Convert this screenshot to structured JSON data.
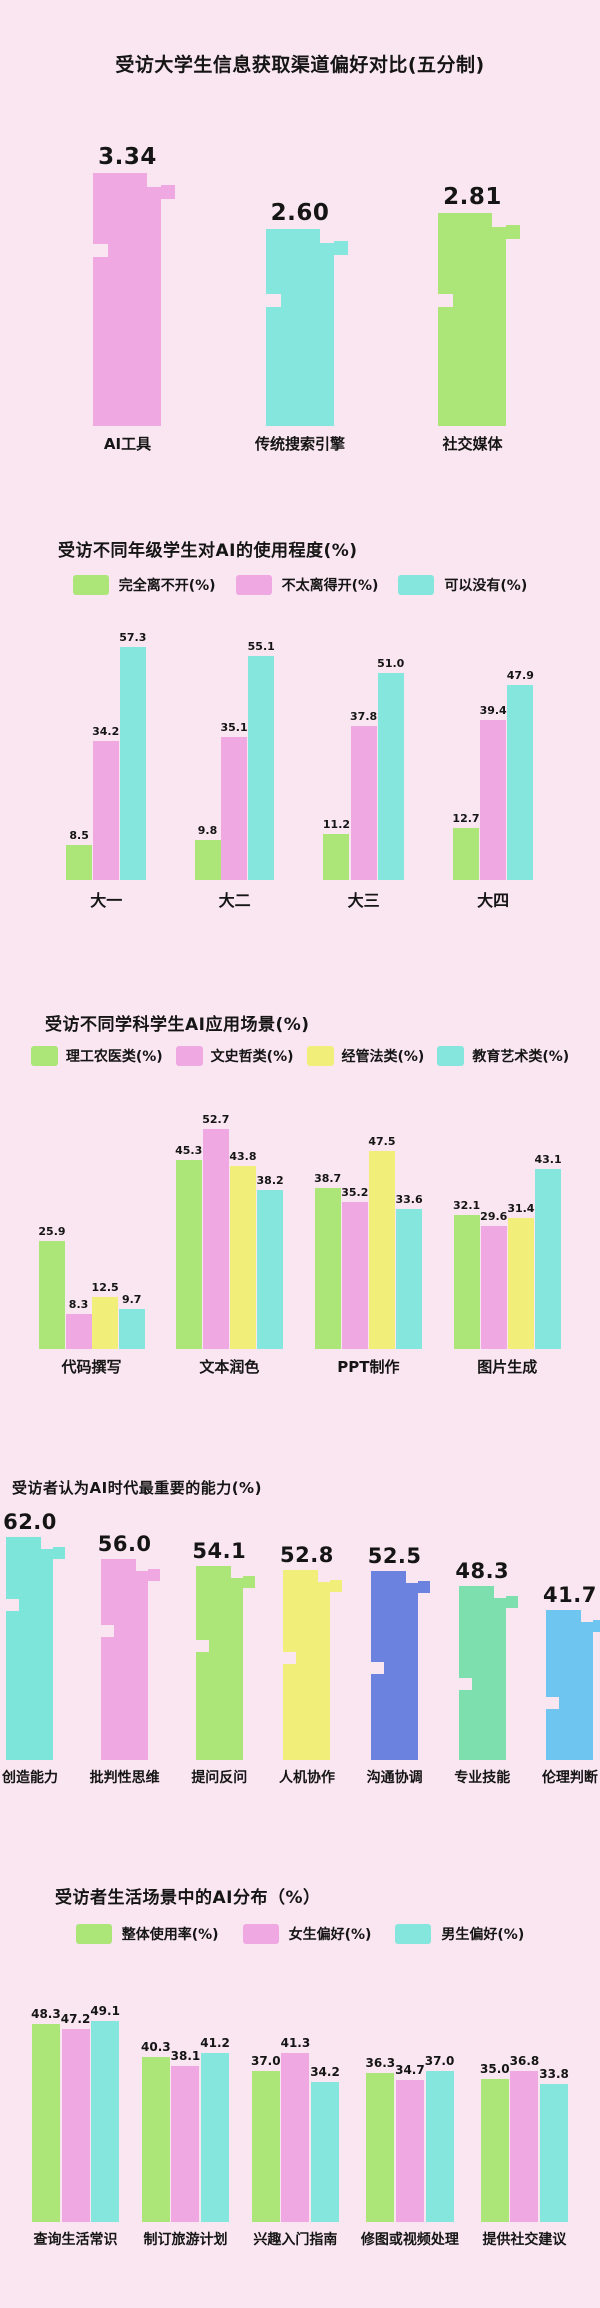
{
  "page": {
    "background": "#fae6f0",
    "text_color": "#151515"
  },
  "chart_data": [
    {
      "id": "channel-preference",
      "type": "bar",
      "title": "受访大学生信息获取渠道偏好对比(五分制)",
      "categories": [
        "AI工具",
        "传统搜索引擎",
        "社交媒体"
      ],
      "values": [
        3.34,
        2.6,
        2.81
      ],
      "decimals": 2,
      "bar_colors": [
        "#f0a8e2",
        "#84e6dc",
        "#ace578"
      ],
      "ylim": [
        0,
        3.5
      ],
      "grid": false,
      "legend_position": "none",
      "pixel_style": true
    },
    {
      "id": "grade-usage",
      "type": "bar",
      "title": "受访不同年级学生对AI的使用程度(%)",
      "categories": [
        "大一",
        "大二",
        "大三",
        "大四"
      ],
      "series": [
        {
          "name": "完全离不开(%)",
          "color": "#ace578",
          "values": [
            8.5,
            9.8,
            11.2,
            12.7
          ]
        },
        {
          "name": "不太离得开(%)",
          "color": "#f0a8e2",
          "values": [
            34.2,
            35.1,
            37.8,
            39.4
          ]
        },
        {
          "name": "可以没有(%)",
          "color": "#84e6dc",
          "values": [
            57.3,
            55.1,
            51.0,
            47.9
          ]
        }
      ],
      "decimals": 1,
      "ylim": [
        0,
        59
      ],
      "grid": false,
      "legend_position": "top",
      "pixel_style": false
    },
    {
      "id": "discipline-scenarios",
      "type": "bar",
      "title": "受访不同学科学生AI应用场景(%)",
      "categories": [
        "代码撰写",
        "文本润色",
        "PPT制作",
        "图片生成"
      ],
      "series": [
        {
          "name": "理工农医类(%)",
          "color": "#ace578",
          "values": [
            25.9,
            45.3,
            38.7,
            32.1
          ]
        },
        {
          "name": "文史哲类(%)",
          "color": "#f0a8e2",
          "values": [
            8.3,
            52.7,
            35.2,
            29.6
          ]
        },
        {
          "name": "经管法类(%)",
          "color": "#f1ee79",
          "values": [
            12.5,
            43.8,
            47.5,
            31.4
          ]
        },
        {
          "name": "教育艺术类(%)",
          "color": "#84e6dc",
          "values": [
            9.7,
            38.2,
            33.6,
            43.1
          ]
        }
      ],
      "decimals": 1,
      "ylim": [
        0,
        54
      ],
      "grid": false,
      "legend_position": "top",
      "pixel_style": false
    },
    {
      "id": "important-abilities",
      "type": "bar",
      "title": "受访者认为AI时代最重要的能力(%)",
      "categories": [
        "创造能力",
        "批判性思维",
        "提问反问",
        "人机协作",
        "沟通协调",
        "专业技能",
        "伦理判断"
      ],
      "values": [
        62.0,
        56.0,
        54.1,
        52.8,
        52.5,
        48.3,
        41.7
      ],
      "decimals": 1,
      "bar_colors": [
        "#7de5da",
        "#f0a8e2",
        "#ace578",
        "#f1ee79",
        "#6b83de",
        "#7edfae",
        "#6ec5ef"
      ],
      "ylim": [
        0,
        64
      ],
      "grid": false,
      "legend_position": "none",
      "pixel_style": true
    },
    {
      "id": "life-scenarios",
      "type": "bar",
      "title": "受访者生活场景中的AI分布（%）",
      "categories": [
        "查询生活常识",
        "制订旅游计划",
        "兴趣入门指南",
        "修图或视频处理",
        "提供社交建议"
      ],
      "series": [
        {
          "name": "整体使用率(%)",
          "color": "#ace578",
          "values": [
            48.3,
            40.3,
            37.0,
            36.3,
            35.0
          ]
        },
        {
          "name": "女生偏好(%)",
          "color": "#f0a8e2",
          "values": [
            47.2,
            38.1,
            41.3,
            34.7,
            36.8
          ]
        },
        {
          "name": "男生偏好(%)",
          "color": "#84e6dc",
          "values": [
            49.1,
            41.2,
            34.2,
            37.0,
            33.8
          ]
        }
      ],
      "decimals": 1,
      "ylim": [
        0,
        53
      ],
      "grid": false,
      "legend_position": "top",
      "pixel_style": false
    }
  ]
}
